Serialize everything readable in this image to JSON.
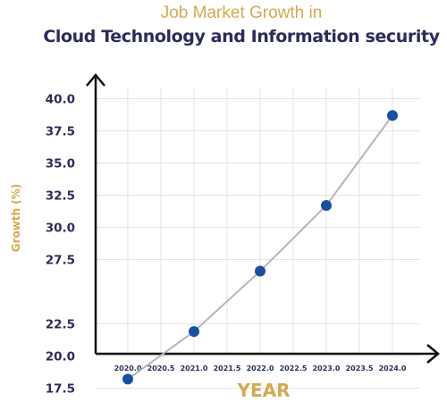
{
  "title_line1": "Job Market Growth in",
  "title_line2": "Cloud Technology and Information security",
  "chart_data": {
    "type": "line",
    "title": "Job Market Growth in Cloud Technology and Information security",
    "xlabel": "YEAR",
    "ylabel": "Growth (%)",
    "x": [
      2020.0,
      2021.0,
      2022.0,
      2023.0,
      2024.0
    ],
    "y": [
      18.2,
      21.9,
      26.6,
      31.7,
      38.7
    ],
    "x_ticks": [
      "2020.0",
      "2020.5",
      "2021.0",
      "2021.5",
      "2022.0",
      "2022.5",
      "2023.0",
      "2023.5",
      "2024.0"
    ],
    "y_ticks": [
      "17.5",
      "20.0",
      "22.5",
      "27.5",
      "30.0",
      "32.5",
      "35.0",
      "37.5",
      "40.0"
    ],
    "grid": true,
    "colors": {
      "line": "#b5b5b5",
      "marker": "#1a4fa3",
      "title_accent": "#d4a94f",
      "title_main": "#2c2c5a",
      "axis": "#111111"
    }
  }
}
